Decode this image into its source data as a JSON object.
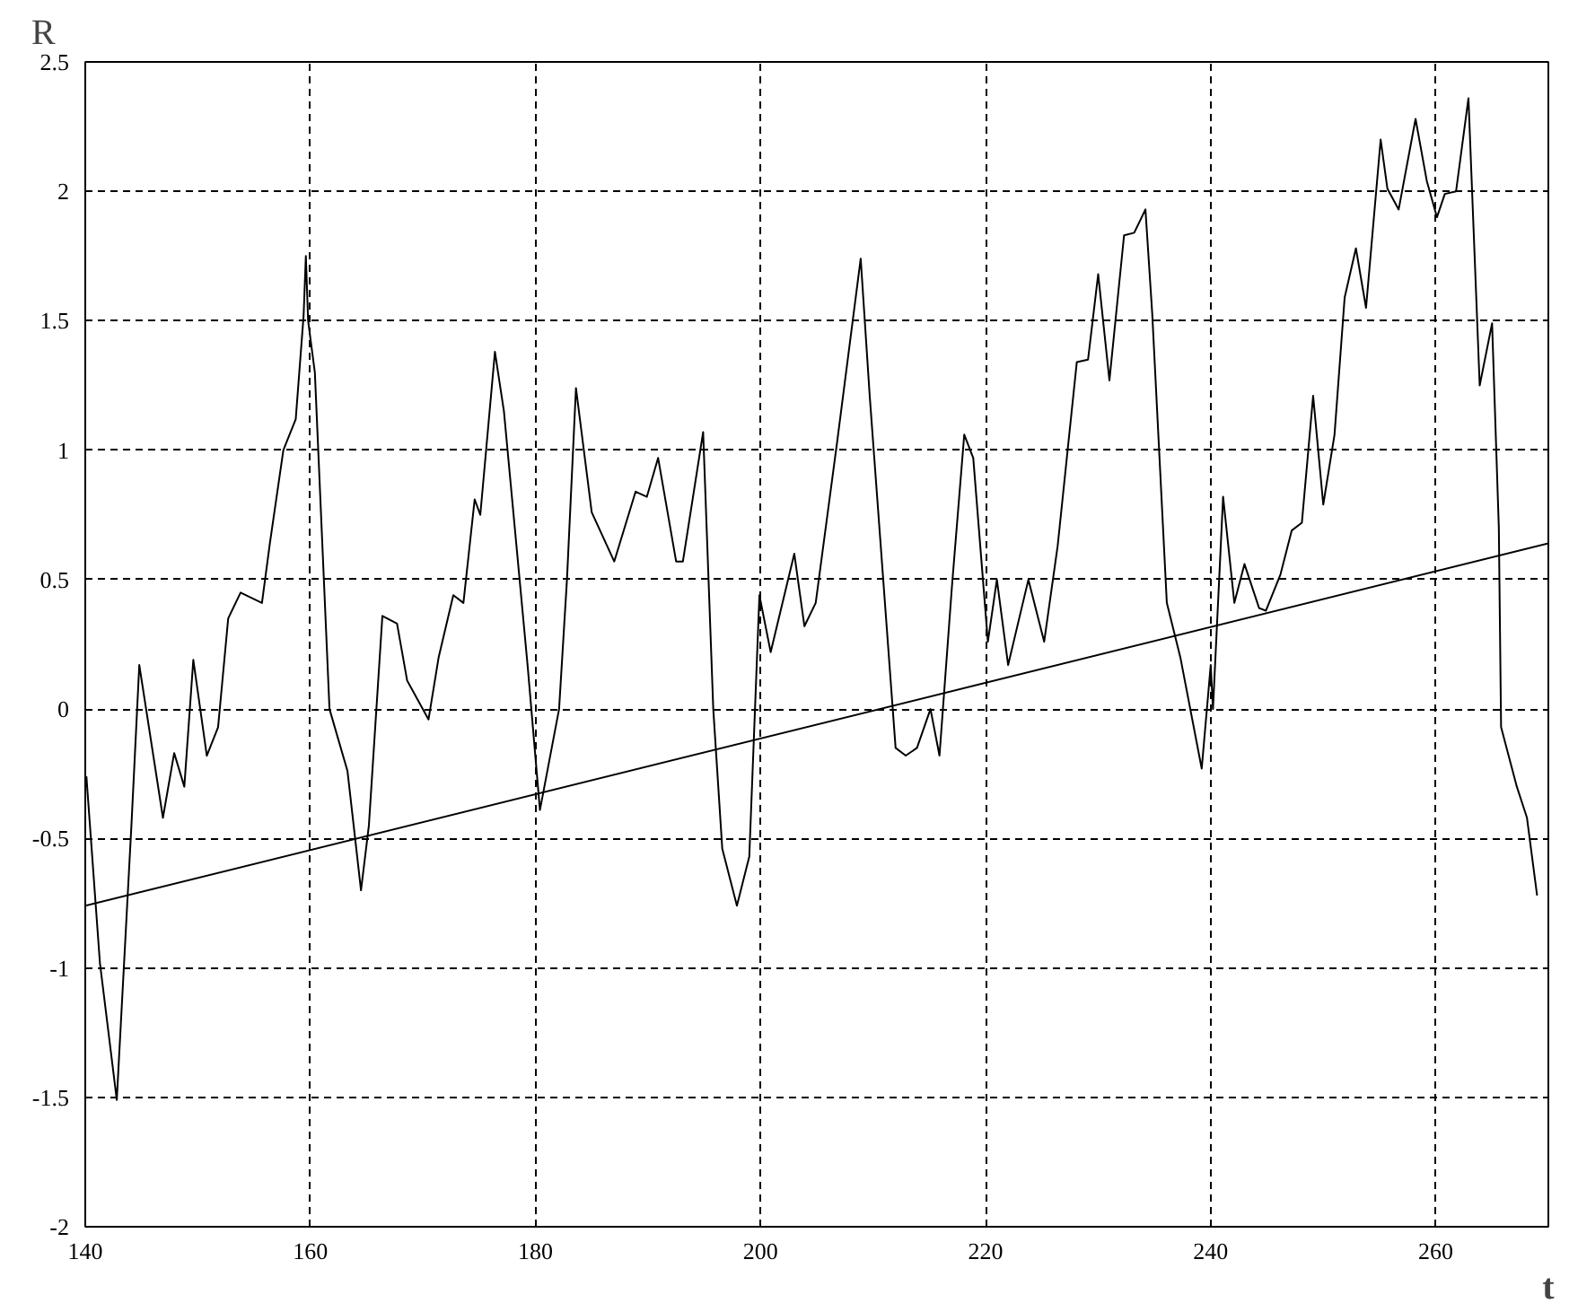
{
  "chart_data": {
    "type": "line",
    "xlabel": "t",
    "ylabel": "R",
    "xlim": [
      140,
      270
    ],
    "ylim": [
      -2,
      2.5
    ],
    "xticks": [
      140,
      160,
      180,
      200,
      220,
      240,
      260
    ],
    "yticks": [
      -2,
      -1.5,
      -1,
      -0.5,
      0,
      0.5,
      1,
      1.5,
      2,
      2.5
    ],
    "grid": true,
    "line_style": "solid",
    "marker": "none",
    "series": [
      {
        "color": "#000000",
        "x": [
          140.1,
          141.3,
          142.8,
          144.1,
          144.8,
          146.9,
          147.9,
          148.8,
          149.6,
          150.8,
          151.8,
          152.7,
          153.8,
          155.7,
          156.4,
          157.6,
          158.7,
          159.4,
          159.6,
          159.8,
          160.4,
          161.7,
          163.3,
          164.5,
          165.2,
          166.4,
          167.7,
          168.6,
          170.5,
          171.4,
          172.7,
          173.6,
          174.6,
          175.1,
          176.4,
          177.2,
          179.3,
          180.4,
          182.1,
          182.8,
          183.6,
          185,
          187,
          188.9,
          189.9,
          190.9,
          192.5,
          193.1,
          194.9,
          195.8,
          196.6,
          197.9,
          199,
          199.9,
          200.9,
          203,
          203.9,
          204.9,
          206.8,
          208.9,
          209.7,
          212,
          212.9,
          213.9,
          215.1,
          215.9,
          217,
          218.1,
          218.9,
          220.2,
          221,
          222,
          223.8,
          225.2,
          226.4,
          228.1,
          229.1,
          230,
          231,
          232.3,
          233.2,
          234.2,
          234.8,
          236.1,
          237.3,
          239.2,
          240,
          240.2,
          241.1,
          242.1,
          243,
          244.3,
          244.9,
          246.2,
          247.2,
          248.1,
          249.1,
          250,
          251,
          251.9,
          252.9,
          253.8,
          255.1,
          255.7,
          256.7,
          258.2,
          259.2,
          260.1,
          260.8,
          261.8,
          262.9,
          263.9,
          265,
          265.6,
          265.8,
          267.2,
          268.1,
          269
        ],
        "values": [
          -0.26,
          -0.98,
          -1.51,
          -0.45,
          0.17,
          -0.42,
          -0.17,
          -0.3,
          0.19,
          -0.18,
          -0.07,
          0.35,
          0.45,
          0.41,
          0.64,
          1.0,
          1.12,
          1.52,
          1.75,
          1.5,
          1.3,
          0.0,
          -0.24,
          -0.7,
          -0.45,
          0.36,
          0.33,
          0.11,
          -0.04,
          0.2,
          0.44,
          0.41,
          0.81,
          0.75,
          1.38,
          1.15,
          0.17,
          -0.39,
          0.0,
          0.5,
          1.24,
          0.76,
          0.57,
          0.84,
          0.82,
          0.97,
          0.57,
          0.57,
          1.07,
          0.0,
          -0.54,
          -0.76,
          -0.57,
          0.44,
          0.22,
          0.6,
          0.32,
          0.41,
          1.03,
          1.74,
          1.21,
          -0.15,
          -0.18,
          -0.15,
          0.0,
          -0.18,
          0.47,
          1.06,
          0.97,
          0.26,
          0.5,
          0.17,
          0.5,
          0.26,
          0.63,
          1.34,
          1.35,
          1.68,
          1.27,
          1.83,
          1.84,
          1.93,
          1.53,
          0.41,
          0.2,
          -0.23,
          0.17,
          0.0,
          0.82,
          0.41,
          0.56,
          0.39,
          0.38,
          0.52,
          0.69,
          0.72,
          1.21,
          0.79,
          1.06,
          1.59,
          1.78,
          1.55,
          2.2,
          2.01,
          1.93,
          2.28,
          2.04,
          1.9,
          1.99,
          2.0,
          2.36,
          1.25,
          1.49,
          0.7,
          -0.07,
          -0.3,
          -0.42,
          -0.72
        ]
      },
      {
        "type": "line",
        "color": "#000000",
        "x": [
          140,
          270
        ],
        "values": [
          -0.76,
          0.64
        ]
      }
    ]
  }
}
